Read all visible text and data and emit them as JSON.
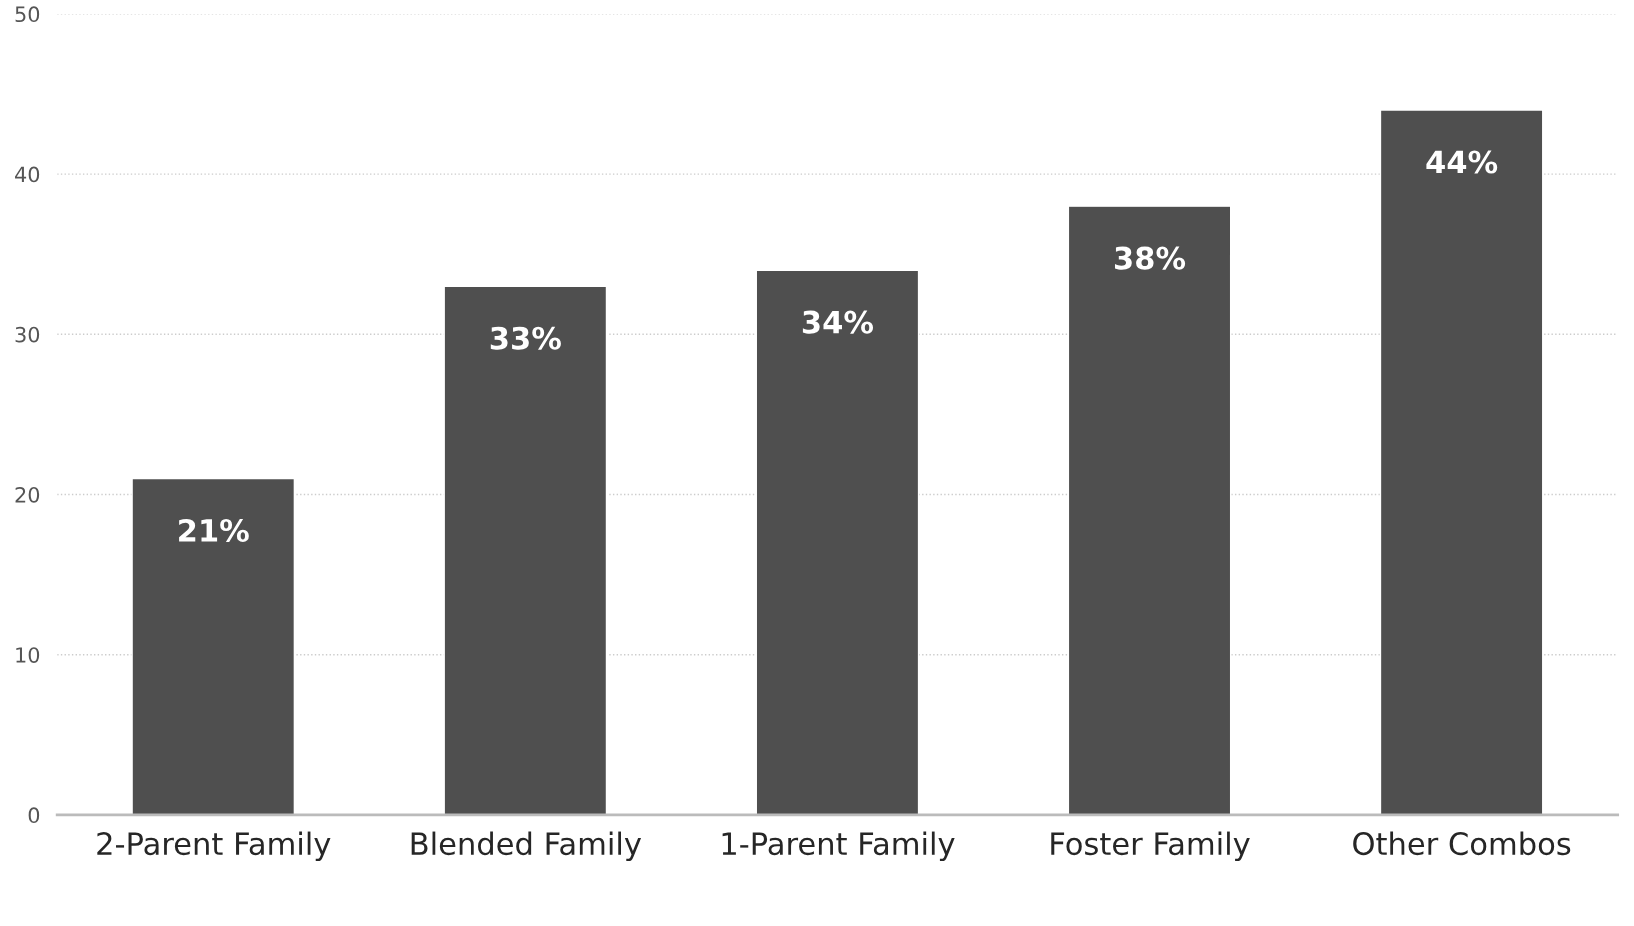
{
  "chart_data": {
    "type": "bar",
    "categories": [
      "2-Parent Family",
      "Blended Family",
      "1-Parent Family",
      "Foster Family",
      "Other Combos"
    ],
    "values": [
      21,
      33,
      34,
      38,
      44
    ],
    "value_labels": [
      "21%",
      "33%",
      "34%",
      "38%",
      "44%"
    ],
    "color": "#4f4f4f",
    "ylim": [
      0,
      50
    ],
    "yticks": [
      0,
      10,
      20,
      30,
      40,
      50
    ],
    "grid": "y"
  }
}
